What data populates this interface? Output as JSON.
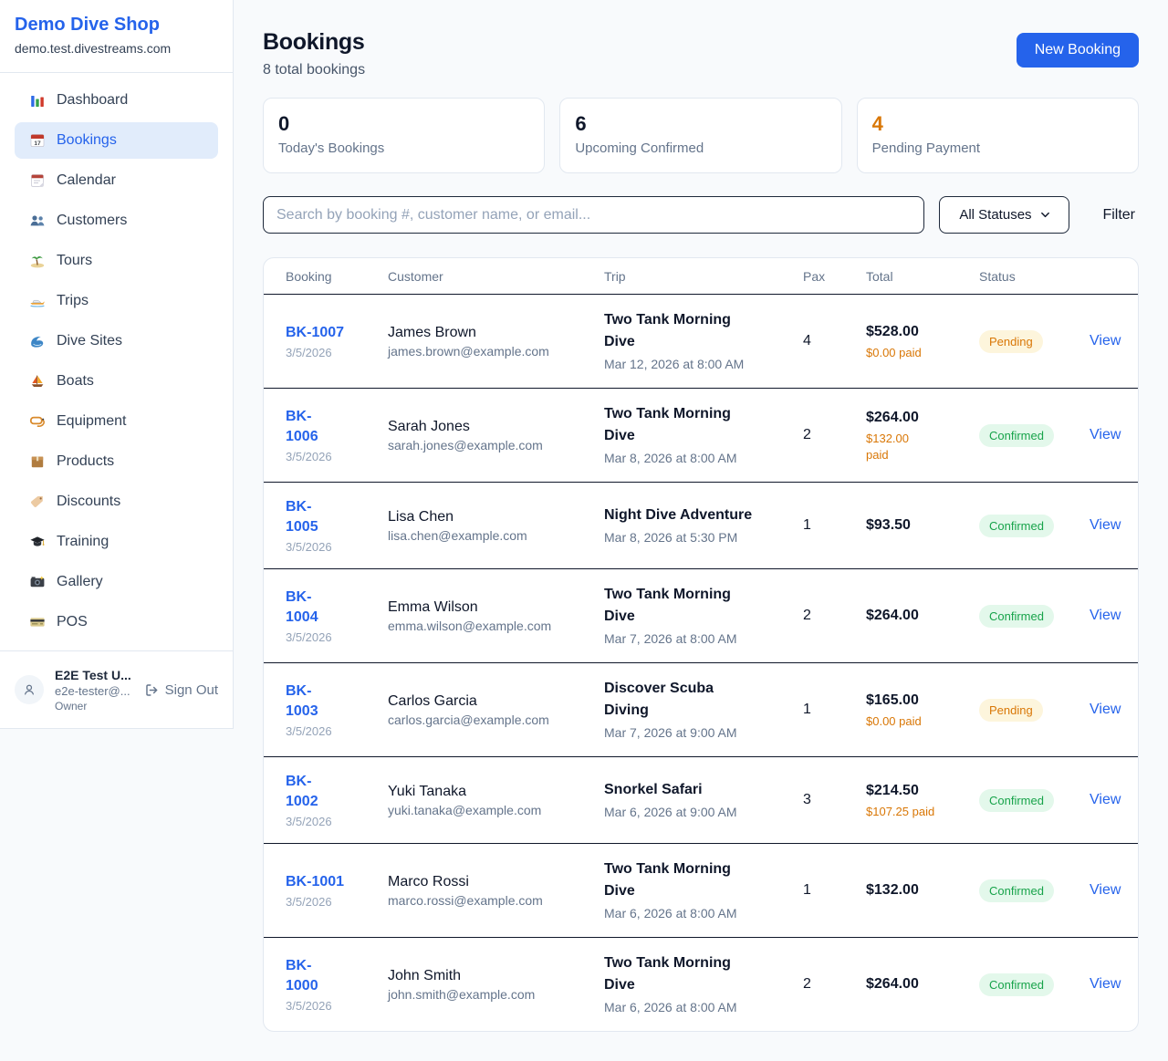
{
  "colors": {
    "accent_blue": "#2563eb",
    "pending_orange": "#d97706",
    "confirmed_green": "#17a34a",
    "pending_badge_bg": "#fdf5dc",
    "confirmed_badge_bg": "#e3f8eb",
    "page_bg": "#f8fafc"
  },
  "sidebar": {
    "shop_name": "Demo Dive Shop",
    "domain": "demo.test.divestreams.com",
    "active_item": "Bookings",
    "items": [
      {
        "label": "Dashboard",
        "icon": "bar-chart-icon"
      },
      {
        "label": "Bookings",
        "icon": "calendar-date-icon"
      },
      {
        "label": "Calendar",
        "icon": "tearoff-calendar-icon"
      },
      {
        "label": "Customers",
        "icon": "people-icon"
      },
      {
        "label": "Tours",
        "icon": "island-icon"
      },
      {
        "label": "Trips",
        "icon": "speedboat-icon"
      },
      {
        "label": "Dive Sites",
        "icon": "wave-icon"
      },
      {
        "label": "Boats",
        "icon": "sailboat-icon"
      },
      {
        "label": "Equipment",
        "icon": "dive-mask-icon"
      },
      {
        "label": "Products",
        "icon": "package-icon"
      },
      {
        "label": "Discounts",
        "icon": "tag-icon"
      },
      {
        "label": "Training",
        "icon": "graduation-cap-icon"
      },
      {
        "label": "Gallery",
        "icon": "camera-icon"
      },
      {
        "label": "POS",
        "icon": "credit-card-icon"
      }
    ],
    "user": {
      "name": "E2E Test U...",
      "email": "e2e-tester@...",
      "role": "Owner",
      "sign_out_label": "Sign Out"
    }
  },
  "header": {
    "title": "Bookings",
    "subtitle": "8 total bookings",
    "new_booking_label": "New Booking"
  },
  "stats": [
    {
      "value": "0",
      "label": "Today's Bookings"
    },
    {
      "value": "6",
      "label": "Upcoming Confirmed"
    },
    {
      "value": "4",
      "label": "Pending Payment"
    }
  ],
  "filters": {
    "search_placeholder": "Search by booking #, customer name, or email...",
    "status_selected": "All Statuses",
    "filter_label": "Filter"
  },
  "table": {
    "columns": [
      "Booking",
      "Customer",
      "Trip",
      "Pax",
      "Total",
      "Status"
    ],
    "view_label": "View",
    "rows": [
      {
        "id": "BK-1007",
        "date": "3/5/2026",
        "customer": "James Brown",
        "email": "james.brown@example.com",
        "trip": "Two Tank Morning\nDive",
        "trip_date": "Mar 12, 2026 at 8:00 AM",
        "pax": "4",
        "total": "$528.00",
        "paid": "$0.00 paid",
        "status": "Pending"
      },
      {
        "id": "BK-\n1006",
        "date": "3/5/2026",
        "customer": "Sarah Jones",
        "email": "sarah.jones@example.com",
        "trip": "Two Tank Morning\nDive",
        "trip_date": "Mar 8, 2026 at 8:00 AM",
        "pax": "2",
        "total": "$264.00",
        "paid": "$132.00\npaid",
        "status": "Confirmed"
      },
      {
        "id": "BK-\n1005",
        "date": "3/5/2026",
        "customer": "Lisa Chen",
        "email": "lisa.chen@example.com",
        "trip": "Night Dive Adventure",
        "trip_date": "Mar 8, 2026 at 5:30 PM",
        "pax": "1",
        "total": "$93.50",
        "paid": "",
        "status": "Confirmed"
      },
      {
        "id": "BK-\n1004",
        "date": "3/5/2026",
        "customer": "Emma Wilson",
        "email": "emma.wilson@example.com",
        "trip": "Two Tank Morning\nDive",
        "trip_date": "Mar 7, 2026 at 8:00 AM",
        "pax": "2",
        "total": "$264.00",
        "paid": "",
        "status": "Confirmed"
      },
      {
        "id": "BK-\n1003",
        "date": "3/5/2026",
        "customer": "Carlos Garcia",
        "email": "carlos.garcia@example.com",
        "trip": "Discover Scuba\nDiving",
        "trip_date": "Mar 7, 2026 at 9:00 AM",
        "pax": "1",
        "total": "$165.00",
        "paid": "$0.00 paid",
        "status": "Pending"
      },
      {
        "id": "BK-\n1002",
        "date": "3/5/2026",
        "customer": "Yuki Tanaka",
        "email": "yuki.tanaka@example.com",
        "trip": "Snorkel Safari",
        "trip_date": "Mar 6, 2026 at 9:00 AM",
        "pax": "3",
        "total": "$214.50",
        "paid": "$107.25 paid",
        "status": "Confirmed"
      },
      {
        "id": "BK-1001",
        "date": "3/5/2026",
        "customer": "Marco Rossi",
        "email": "marco.rossi@example.com",
        "trip": "Two Tank Morning\nDive",
        "trip_date": "Mar 6, 2026 at 8:00 AM",
        "pax": "1",
        "total": "$132.00",
        "paid": "",
        "status": "Confirmed"
      },
      {
        "id": "BK-\n1000",
        "date": "3/5/2026",
        "customer": "John Smith",
        "email": "john.smith@example.com",
        "trip": "Two Tank Morning\nDive",
        "trip_date": "Mar 6, 2026 at 8:00 AM",
        "pax": "2",
        "total": "$264.00",
        "paid": "",
        "status": "Confirmed"
      }
    ]
  }
}
